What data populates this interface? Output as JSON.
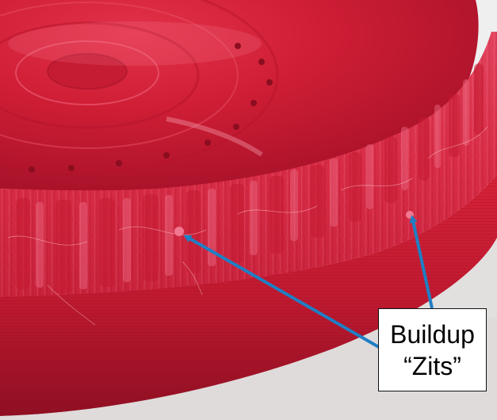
{
  "callout": {
    "line1": "Buildup",
    "line2": "“Zits”"
  },
  "colors": {
    "filament_red": "#d21c34",
    "arrow_blue": "#1f7fc4",
    "background_white": "#f2f2f2"
  },
  "subject": {
    "icon": "3d-printed-part-photo"
  }
}
